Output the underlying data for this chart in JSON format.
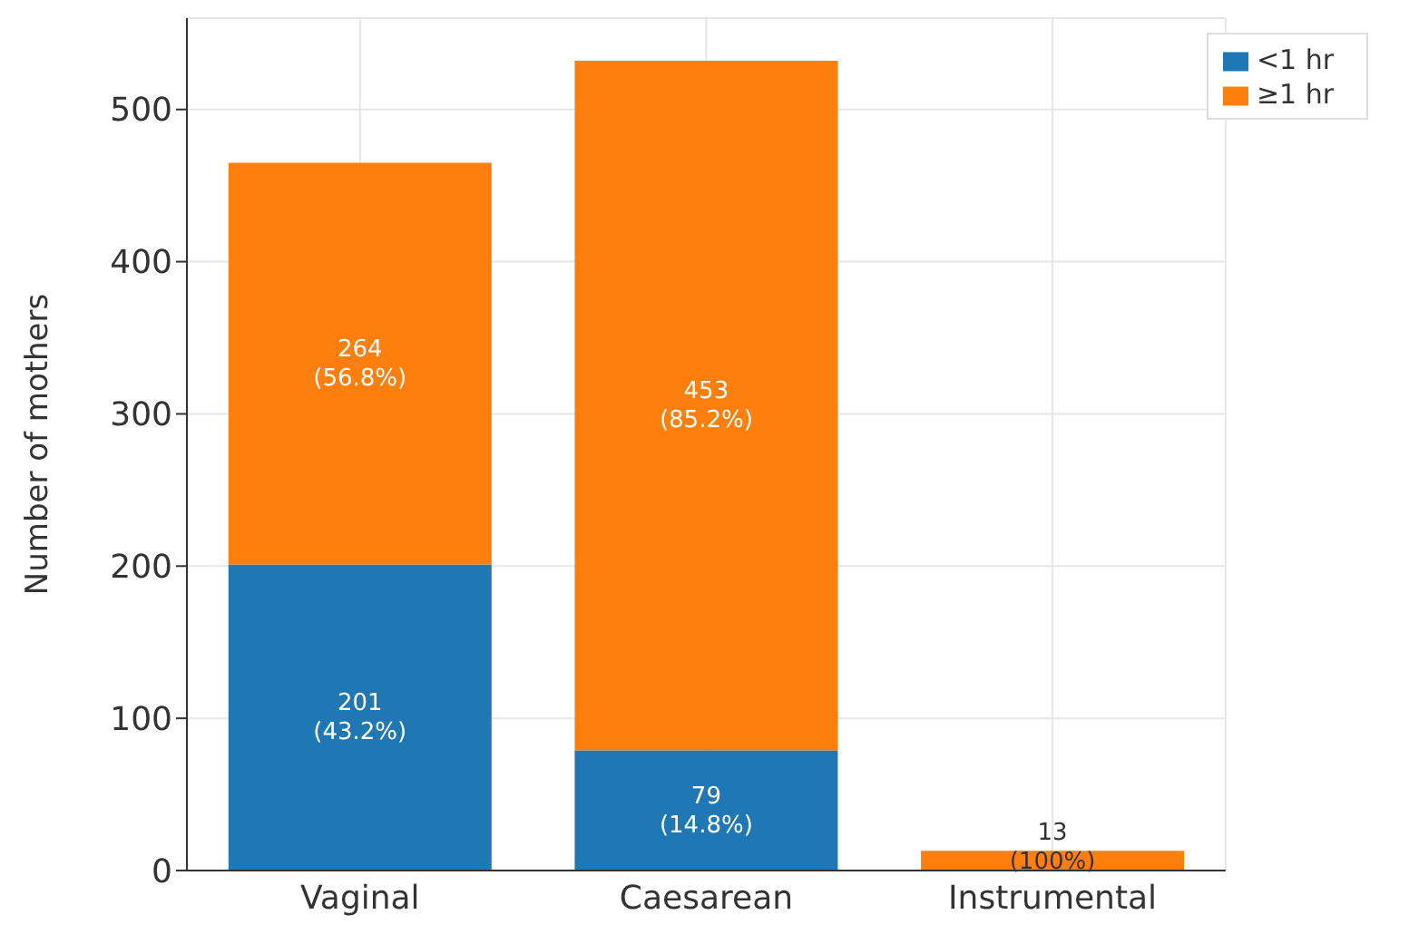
{
  "chart_data": {
    "type": "bar",
    "stacked": true,
    "ylabel": "Number of mothers",
    "categories": [
      "Vaginal",
      "Caesarean",
      "Instrumental"
    ],
    "series": [
      {
        "name": "<1 hr",
        "color": "#1f77b4",
        "values": [
          201,
          79,
          0
        ],
        "value_labels": [
          "201\n(43.2%)",
          "79\n(14.8%)",
          null
        ]
      },
      {
        "name": "≥1 hr",
        "color": "#ff7f0e",
        "values": [
          264,
          453,
          13
        ],
        "value_labels": [
          "264\n(56.8%)",
          "453\n(85.2%)",
          "13\n(100%)"
        ]
      }
    ],
    "ylim": [
      0,
      560
    ],
    "yticks": [
      0,
      100,
      200,
      300,
      400,
      500
    ],
    "grid": true,
    "legend": "top right"
  }
}
